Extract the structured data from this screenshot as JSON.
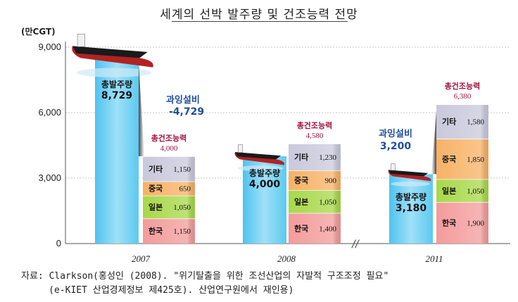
{
  "title": "세계의 선박 발주량 및 건조능력 전망",
  "unit": "(만CGT)",
  "chart_data": {
    "type": "bar",
    "title": "세계의 선박 발주량 및 건조능력 전망",
    "ylabel": "(만CGT)",
    "ylim": [
      0,
      9000
    ],
    "yticks": [
      "9,000",
      "6,000",
      "3,000",
      "0"
    ],
    "ytick_values": [
      9000,
      6000,
      3000,
      0
    ],
    "categories": [
      "2007",
      "2008",
      "2011"
    ],
    "axis_break_label": "//",
    "orders": {
      "name": "총발주량",
      "values": [
        8729,
        4000,
        3180
      ],
      "value_labels": [
        "8,729",
        "4,000",
        "3,180"
      ]
    },
    "capacity": {
      "name": "총건조능력",
      "totals": [
        4000,
        4580,
        6380
      ],
      "total_labels": [
        "4,000",
        "4,580",
        "6,380"
      ],
      "segments": [
        {
          "name": "한국",
          "values": [
            1150,
            1400,
            1900
          ],
          "labels": [
            "1,150",
            "1,400",
            "1,900"
          ],
          "color": "#f49b9b"
        },
        {
          "name": "일본",
          "values": [
            1050,
            1050,
            1050
          ],
          "labels": [
            "1,050",
            "1,050",
            "1,050"
          ],
          "color": "#a8d84a"
        },
        {
          "name": "중국",
          "values": [
            650,
            900,
            1850
          ],
          "labels": [
            "650",
            "900",
            "1,850"
          ],
          "color": "#f7b266"
        },
        {
          "name": "기타",
          "values": [
            1150,
            1230,
            1580
          ],
          "labels": [
            "1,150",
            "1,230",
            "1,580"
          ],
          "color": "#c9c9dc"
        }
      ]
    },
    "annotations": [
      {
        "category": "2007",
        "label": "과잉설비",
        "value": "-4,729"
      },
      {
        "category": "2011",
        "label": "과잉설비",
        "value": "3,200"
      }
    ]
  },
  "source": {
    "line1": "자료: Clarkson(홍성인 (2008). \"위기탈출을 위한 조선산업의 자발적 구조조정 필요\"",
    "line2": "     (e-KIET 산업경제정보 제425호). 산업연구원에서 재인용)"
  }
}
